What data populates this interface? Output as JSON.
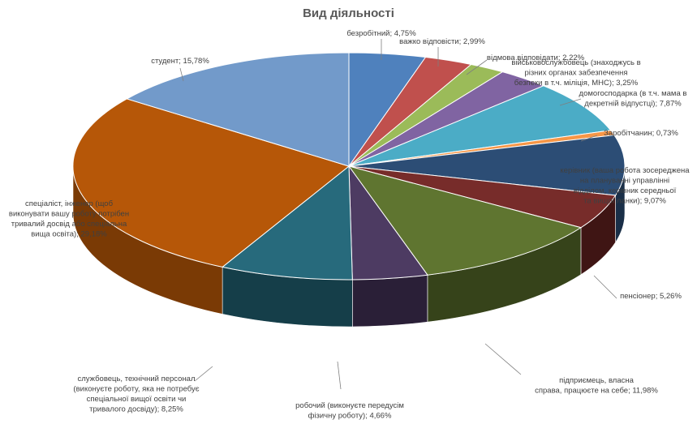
{
  "chart_data": {
    "type": "pie",
    "title": "Вид діяльності",
    "slices": [
      {
        "label": "безробітний",
        "value": 4.75,
        "display": "4,75%",
        "color": "#4f81bd",
        "side": "#2c4d75"
      },
      {
        "label": "важко відповісти",
        "value": 2.99,
        "display": "2,99%",
        "color": "#c0504d",
        "side": "#7a2f2d"
      },
      {
        "label": "відмова відповідати",
        "value": 2.22,
        "display": "2,22%",
        "color": "#9bbb59",
        "side": "#5e7534"
      },
      {
        "label": "військовослужбовець (знаходжусь в різних органах забезпечення безпеки в т.ч. міліція, МНС)",
        "value": 3.25,
        "display": "3,25%",
        "color": "#8064a2",
        "side": "#4d3a64"
      },
      {
        "label": "домогосподарка (в т.ч. мама в декретній відпустці)",
        "value": 7.87,
        "display": "7,87%",
        "color": "#4bacc6",
        "side": "#2a6b7c"
      },
      {
        "label": "Заробітчанин",
        "value": 0.73,
        "display": "0,73%",
        "color": "#f79646",
        "side": "#a85a1d"
      },
      {
        "label": "керівник (ваша робота зосереджена на плануванні управлінні відділом, керівник середньої та вищої ланки)",
        "value": 9.07,
        "display": "9,07%",
        "color": "#2c4d75",
        "side": "#1a2f48"
      },
      {
        "label": "пенсіонер",
        "value": 5.26,
        "display": "5,26%",
        "color": "#772c2a",
        "side": "#3f1514"
      },
      {
        "label": "підприємець, власна справа, працюєте на себе",
        "value": 11.98,
        "display": "11,98%",
        "color": "#5f7530",
        "side": "#36431a"
      },
      {
        "label": "робочий (виконуєте передусім фізичну роботу)",
        "value": 4.66,
        "display": "4,66%",
        "color": "#4d3b62",
        "side": "#2a1f37"
      },
      {
        "label": "службовець, технічний персонал (виконуєте роботу, яка не потребує спеціальної вищої освіти чи тривалого досвіду)",
        "value": 8.25,
        "display": "8,25%",
        "color": "#276a7c",
        "side": "#153e49"
      },
      {
        "label": "спеціаліст, інженер (щоб виконувати вашу роботу потрібен тривалий досвід або спеціальна вища освіта)",
        "value": 29.18,
        "display": "29,18%",
        "color": "#b65708",
        "side": "#7a3a05"
      },
      {
        "label": "студент",
        "value": 15.78,
        "display": "15,78%",
        "color": "#729aca",
        "side": "#46638a"
      }
    ],
    "label_lines": [
      [
        "безробітний; 4,75%"
      ],
      [
        "важко відповісти; 2,99%"
      ],
      [
        "відмова відповідати; 2,22%"
      ],
      [
        "військовослужбовець (знаходжусь в",
        "різних органах забезпечення",
        "безпеки в т.ч. міліція, МНС); 3,25%"
      ],
      [
        "домогосподарка (в т.ч. мама в",
        "декретній відпустці); 7,87%"
      ],
      [
        "Заробітчанин; 0,73%"
      ],
      [
        "керівник (ваша робота зосереджена",
        "на плануванні управлінні",
        "відділом, керівник середньої",
        "та вищої ланки); 9,07%"
      ],
      [
        "пенсіонер; 5,26%"
      ],
      [
        "підприємець, власна",
        "справа, працюєте на себе; 11,98%"
      ],
      [
        "робочий (виконуєте передусім",
        "фізичну роботу); 4,66%"
      ],
      [
        "службовець, технічний персонал",
        "(виконуєте роботу, яка не потребує",
        "спеціальної вищої освіти чи",
        "тривалого досвіду); 8,25%"
      ],
      [
        "спеціаліст, інженер (щоб",
        "виконувати вашу роботу потрібен",
        "тривалий досвід або спеціальна",
        "вища освіта); 29,18%"
      ],
      [
        "студент; 15,78%"
      ]
    ],
    "legend": "none",
    "style": "3d-pie"
  }
}
